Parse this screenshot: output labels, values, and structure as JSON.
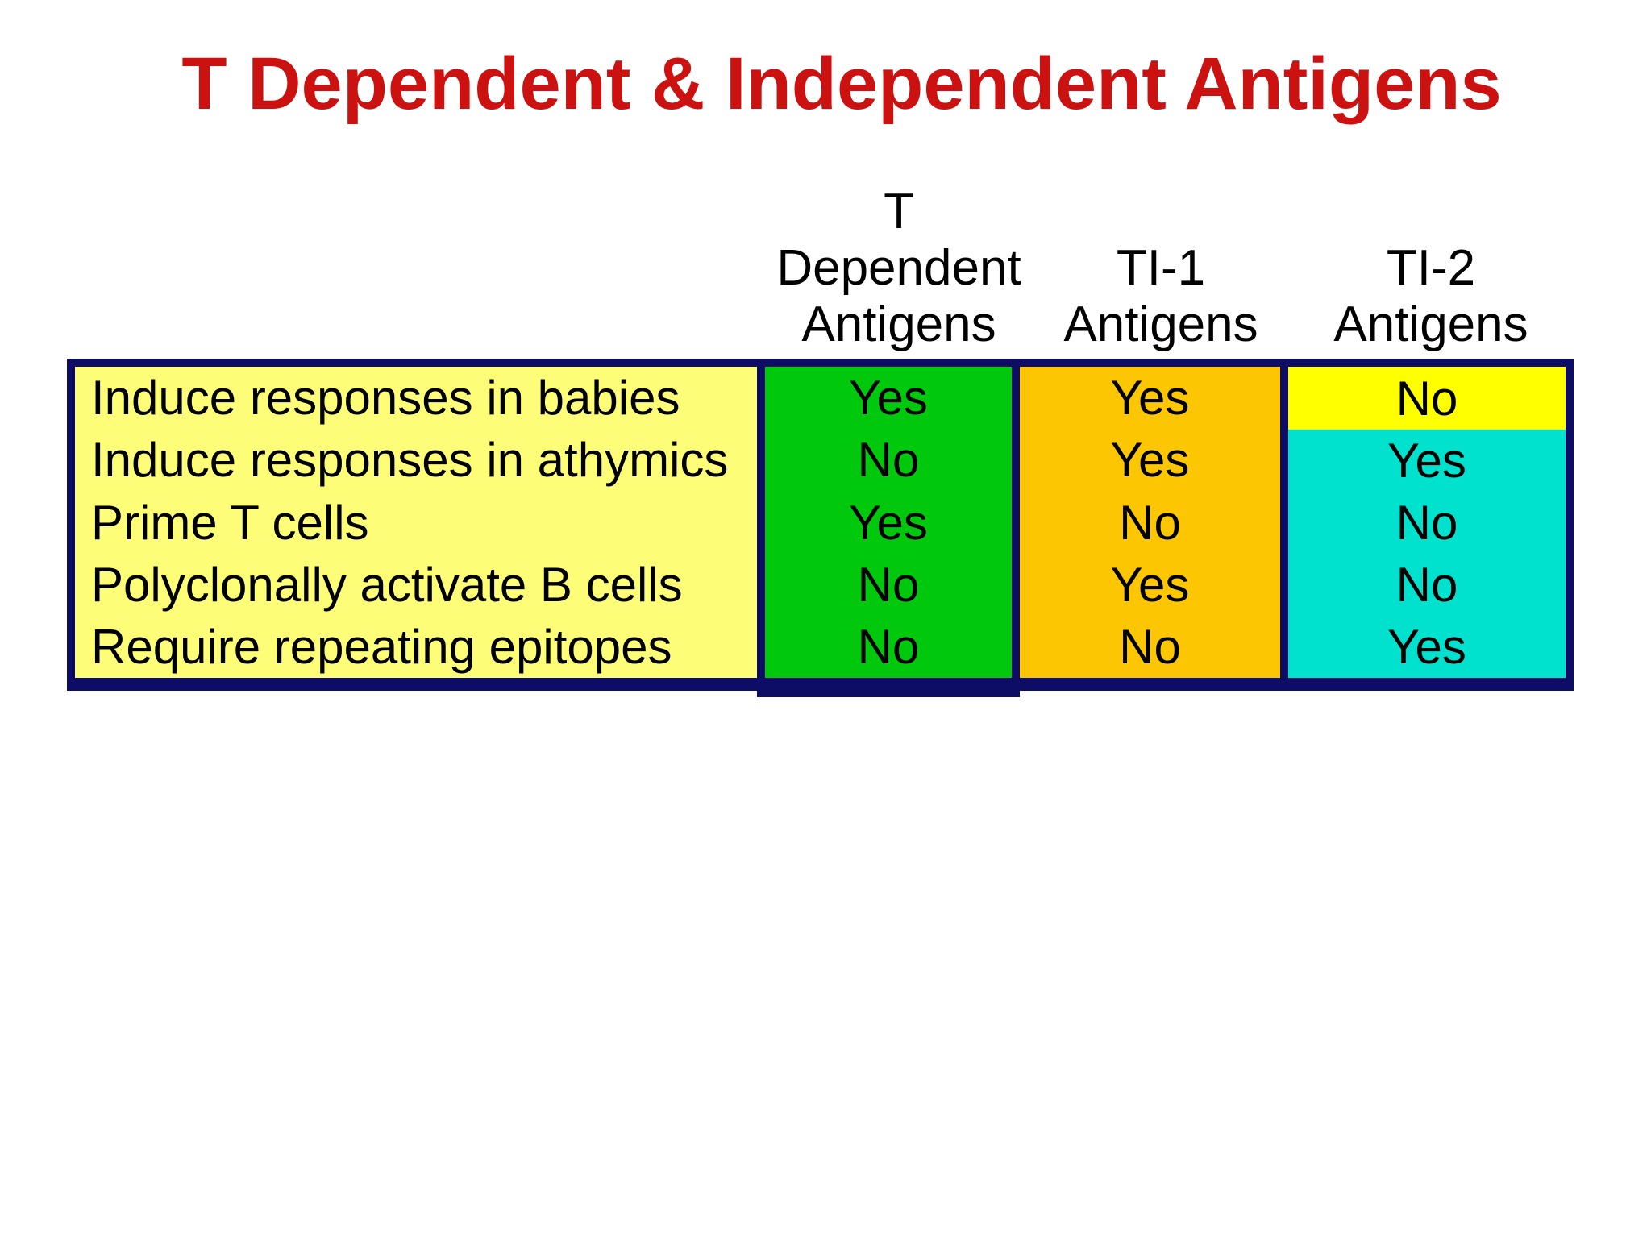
{
  "title": {
    "text": "T Dependent & Independent Antigens",
    "color": "#CC1111"
  },
  "table": {
    "border_color": "#0D0D66",
    "columns": [
      {
        "id": "features",
        "header_lines": [],
        "bg": "#FDFD77"
      },
      {
        "id": "t-dependent-antigens",
        "header_lines": [
          "T",
          "Dependent",
          "Antigens"
        ],
        "bg": "#00C80D"
      },
      {
        "id": "ti-1-antigens",
        "header_lines": [
          "TI-1",
          "Antigens"
        ],
        "bg": "#FCC602"
      },
      {
        "id": "ti-2-antigens",
        "header_lines": [
          "TI-2",
          "Antigens"
        ],
        "bg": "#00E2CD",
        "first_row_bg": "#FFFF00"
      }
    ],
    "rows": [
      {
        "label": "Induce responses in babies",
        "values": [
          "Yes",
          "Yes",
          "No"
        ]
      },
      {
        "label": "Induce responses in athymics",
        "values": [
          "No",
          "Yes",
          "Yes"
        ]
      },
      {
        "label": "Prime T cells",
        "values": [
          "Yes",
          "No",
          "No"
        ]
      },
      {
        "label": "Polyclonally activate B cells",
        "values": [
          "No",
          "Yes",
          "No"
        ]
      },
      {
        "label": "Require repeating epitopes",
        "values": [
          "No",
          "No",
          "Yes"
        ]
      }
    ]
  }
}
